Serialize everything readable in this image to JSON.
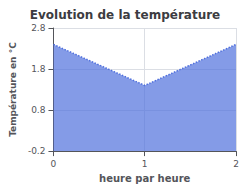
{
  "chart_data": {
    "type": "area",
    "title": "Evolution de la température",
    "xlabel": "heure par heure",
    "ylabel": "Température en °C",
    "x": [
      0,
      1,
      2
    ],
    "values": [
      2.4,
      1.4,
      2.4
    ],
    "xlim": [
      0,
      2
    ],
    "xticks": [
      0,
      1,
      2
    ],
    "ylim": [
      -0.2,
      2.8
    ],
    "yticks": [
      -0.2,
      0.8,
      1.8,
      2.8
    ],
    "line_style": "dotted",
    "grid": true
  }
}
